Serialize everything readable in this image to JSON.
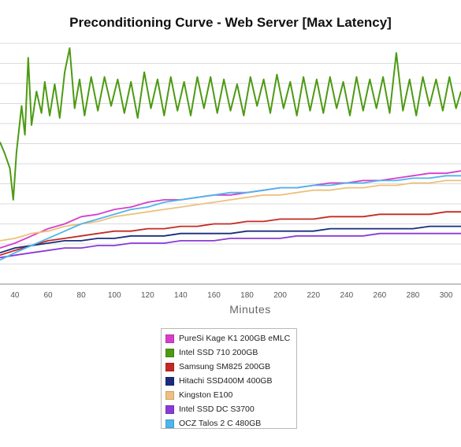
{
  "chart_data": {
    "type": "line",
    "title": "Preconditioning Curve - Web Server [Max Latency]",
    "xlabel": "Minutes",
    "ylabel": "",
    "x_ticks": [
      40,
      60,
      80,
      100,
      120,
      140,
      160,
      180,
      200,
      220,
      240,
      260,
      280,
      300
    ],
    "x_range": [
      31,
      309
    ],
    "y_range": [
      0,
      10
    ],
    "grid": "horizontal",
    "legend_position": "bottom",
    "series": [
      {
        "name": "PureSi Kage K1 200GB eMLC",
        "color": "#d63fc9",
        "points": [
          [
            31,
            1.5
          ],
          [
            40,
            1.7
          ],
          [
            50,
            2.0
          ],
          [
            60,
            2.3
          ],
          [
            70,
            2.5
          ],
          [
            80,
            2.8
          ],
          [
            90,
            2.9
          ],
          [
            100,
            3.1
          ],
          [
            110,
            3.2
          ],
          [
            120,
            3.4
          ],
          [
            130,
            3.5
          ],
          [
            140,
            3.5
          ],
          [
            150,
            3.6
          ],
          [
            160,
            3.7
          ],
          [
            170,
            3.7
          ],
          [
            180,
            3.8
          ],
          [
            190,
            3.9
          ],
          [
            200,
            4.0
          ],
          [
            210,
            4.0
          ],
          [
            220,
            4.1
          ],
          [
            230,
            4.2
          ],
          [
            240,
            4.2
          ],
          [
            250,
            4.3
          ],
          [
            260,
            4.3
          ],
          [
            270,
            4.4
          ],
          [
            280,
            4.5
          ],
          [
            290,
            4.6
          ],
          [
            300,
            4.6
          ],
          [
            309,
            4.7
          ]
        ]
      },
      {
        "name": "Intel SSD 710 200GB",
        "color": "#4c9a12",
        "points": [
          [
            31,
            5.9
          ],
          [
            34,
            5.4
          ],
          [
            37,
            4.8
          ],
          [
            39,
            3.5
          ],
          [
            41,
            5.5
          ],
          [
            44,
            7.4
          ],
          [
            46,
            6.2
          ],
          [
            48,
            9.4
          ],
          [
            50,
            6.6
          ],
          [
            53,
            8.0
          ],
          [
            56,
            7.1
          ],
          [
            58,
            8.4
          ],
          [
            61,
            7.0
          ],
          [
            64,
            8.3
          ],
          [
            67,
            6.9
          ],
          [
            70,
            8.8
          ],
          [
            73,
            9.8
          ],
          [
            76,
            7.3
          ],
          [
            79,
            8.5
          ],
          [
            82,
            7.0
          ],
          [
            86,
            8.6
          ],
          [
            90,
            7.2
          ],
          [
            94,
            8.6
          ],
          [
            98,
            7.4
          ],
          [
            102,
            8.5
          ],
          [
            106,
            7.1
          ],
          [
            110,
            8.4
          ],
          [
            114,
            6.9
          ],
          [
            118,
            8.8
          ],
          [
            122,
            7.3
          ],
          [
            126,
            8.5
          ],
          [
            130,
            7.0
          ],
          [
            134,
            8.6
          ],
          [
            138,
            7.2
          ],
          [
            142,
            8.4
          ],
          [
            146,
            7.0
          ],
          [
            150,
            8.6
          ],
          [
            154,
            7.3
          ],
          [
            158,
            8.6
          ],
          [
            162,
            7.1
          ],
          [
            166,
            8.5
          ],
          [
            170,
            7.2
          ],
          [
            174,
            8.3
          ],
          [
            178,
            7.0
          ],
          [
            182,
            8.6
          ],
          [
            186,
            7.4
          ],
          [
            190,
            8.5
          ],
          [
            194,
            7.1
          ],
          [
            198,
            8.7
          ],
          [
            202,
            7.3
          ],
          [
            206,
            8.4
          ],
          [
            210,
            7.0
          ],
          [
            214,
            8.6
          ],
          [
            218,
            7.2
          ],
          [
            222,
            8.5
          ],
          [
            226,
            7.1
          ],
          [
            230,
            8.6
          ],
          [
            234,
            7.3
          ],
          [
            238,
            8.4
          ],
          [
            242,
            7.0
          ],
          [
            246,
            8.6
          ],
          [
            250,
            7.2
          ],
          [
            254,
            8.5
          ],
          [
            258,
            7.3
          ],
          [
            262,
            8.6
          ],
          [
            266,
            7.1
          ],
          [
            270,
            9.6
          ],
          [
            274,
            7.2
          ],
          [
            278,
            8.5
          ],
          [
            282,
            7.0
          ],
          [
            286,
            8.6
          ],
          [
            290,
            7.4
          ],
          [
            294,
            8.5
          ],
          [
            298,
            7.2
          ],
          [
            302,
            8.6
          ],
          [
            306,
            7.3
          ],
          [
            309,
            8.0
          ]
        ]
      },
      {
        "name": "Samsung SM825 200GB",
        "color": "#c42a24",
        "points": [
          [
            31,
            1.2
          ],
          [
            40,
            1.4
          ],
          [
            50,
            1.6
          ],
          [
            60,
            1.8
          ],
          [
            70,
            1.9
          ],
          [
            80,
            2.0
          ],
          [
            90,
            2.1
          ],
          [
            100,
            2.2
          ],
          [
            110,
            2.2
          ],
          [
            120,
            2.3
          ],
          [
            130,
            2.3
          ],
          [
            140,
            2.4
          ],
          [
            150,
            2.4
          ],
          [
            160,
            2.5
          ],
          [
            170,
            2.5
          ],
          [
            180,
            2.6
          ],
          [
            190,
            2.6
          ],
          [
            200,
            2.7
          ],
          [
            210,
            2.7
          ],
          [
            220,
            2.7
          ],
          [
            230,
            2.8
          ],
          [
            240,
            2.8
          ],
          [
            250,
            2.8
          ],
          [
            260,
            2.9
          ],
          [
            270,
            2.9
          ],
          [
            280,
            2.9
          ],
          [
            290,
            2.9
          ],
          [
            300,
            3.0
          ],
          [
            309,
            3.0
          ]
        ]
      },
      {
        "name": "Hitachi SSD400M 400GB",
        "color": "#1a2d7c",
        "points": [
          [
            31,
            1.3
          ],
          [
            40,
            1.5
          ],
          [
            50,
            1.6
          ],
          [
            60,
            1.7
          ],
          [
            70,
            1.8
          ],
          [
            80,
            1.8
          ],
          [
            90,
            1.9
          ],
          [
            100,
            1.9
          ],
          [
            110,
            2.0
          ],
          [
            120,
            2.0
          ],
          [
            130,
            2.0
          ],
          [
            140,
            2.1
          ],
          [
            150,
            2.1
          ],
          [
            160,
            2.1
          ],
          [
            170,
            2.1
          ],
          [
            180,
            2.2
          ],
          [
            190,
            2.2
          ],
          [
            200,
            2.2
          ],
          [
            210,
            2.2
          ],
          [
            220,
            2.2
          ],
          [
            230,
            2.3
          ],
          [
            240,
            2.3
          ],
          [
            250,
            2.3
          ],
          [
            260,
            2.3
          ],
          [
            270,
            2.3
          ],
          [
            280,
            2.3
          ],
          [
            290,
            2.4
          ],
          [
            300,
            2.4
          ],
          [
            309,
            2.4
          ]
        ]
      },
      {
        "name": "Kingston E100",
        "color": "#eec07f",
        "points": [
          [
            31,
            1.8
          ],
          [
            40,
            1.9
          ],
          [
            50,
            2.1
          ],
          [
            60,
            2.2
          ],
          [
            70,
            2.4
          ],
          [
            80,
            2.5
          ],
          [
            90,
            2.6
          ],
          [
            100,
            2.8
          ],
          [
            110,
            2.9
          ],
          [
            120,
            3.0
          ],
          [
            130,
            3.1
          ],
          [
            140,
            3.2
          ],
          [
            150,
            3.3
          ],
          [
            160,
            3.4
          ],
          [
            170,
            3.5
          ],
          [
            180,
            3.6
          ],
          [
            190,
            3.7
          ],
          [
            200,
            3.7
          ],
          [
            210,
            3.8
          ],
          [
            220,
            3.9
          ],
          [
            230,
            3.9
          ],
          [
            240,
            4.0
          ],
          [
            250,
            4.0
          ],
          [
            260,
            4.1
          ],
          [
            270,
            4.1
          ],
          [
            280,
            4.2
          ],
          [
            290,
            4.2
          ],
          [
            300,
            4.3
          ],
          [
            309,
            4.3
          ]
        ]
      },
      {
        "name": "Intel SSD DC S3700",
        "color": "#8a3ad6",
        "points": [
          [
            31,
            1.1
          ],
          [
            40,
            1.2
          ],
          [
            50,
            1.3
          ],
          [
            60,
            1.4
          ],
          [
            70,
            1.5
          ],
          [
            80,
            1.5
          ],
          [
            90,
            1.6
          ],
          [
            100,
            1.6
          ],
          [
            110,
            1.7
          ],
          [
            120,
            1.7
          ],
          [
            130,
            1.7
          ],
          [
            140,
            1.8
          ],
          [
            150,
            1.8
          ],
          [
            160,
            1.8
          ],
          [
            170,
            1.9
          ],
          [
            180,
            1.9
          ],
          [
            190,
            1.9
          ],
          [
            200,
            1.9
          ],
          [
            210,
            2.0
          ],
          [
            220,
            2.0
          ],
          [
            230,
            2.0
          ],
          [
            240,
            2.0
          ],
          [
            250,
            2.0
          ],
          [
            260,
            2.1
          ],
          [
            270,
            2.1
          ],
          [
            280,
            2.1
          ],
          [
            290,
            2.1
          ],
          [
            300,
            2.1
          ],
          [
            309,
            2.1
          ]
        ]
      },
      {
        "name": "OCZ Talos 2 C 480GB",
        "color": "#4fb6ea",
        "points": [
          [
            31,
            1.0
          ],
          [
            40,
            1.3
          ],
          [
            50,
            1.6
          ],
          [
            60,
            1.9
          ],
          [
            70,
            2.2
          ],
          [
            80,
            2.5
          ],
          [
            90,
            2.7
          ],
          [
            100,
            2.9
          ],
          [
            110,
            3.1
          ],
          [
            120,
            3.2
          ],
          [
            130,
            3.4
          ],
          [
            140,
            3.5
          ],
          [
            150,
            3.6
          ],
          [
            160,
            3.7
          ],
          [
            170,
            3.8
          ],
          [
            180,
            3.8
          ],
          [
            190,
            3.9
          ],
          [
            200,
            4.0
          ],
          [
            210,
            4.0
          ],
          [
            220,
            4.1
          ],
          [
            230,
            4.1
          ],
          [
            240,
            4.2
          ],
          [
            250,
            4.2
          ],
          [
            260,
            4.3
          ],
          [
            270,
            4.3
          ],
          [
            280,
            4.4
          ],
          [
            290,
            4.4
          ],
          [
            300,
            4.5
          ],
          [
            309,
            4.5
          ]
        ]
      }
    ]
  }
}
